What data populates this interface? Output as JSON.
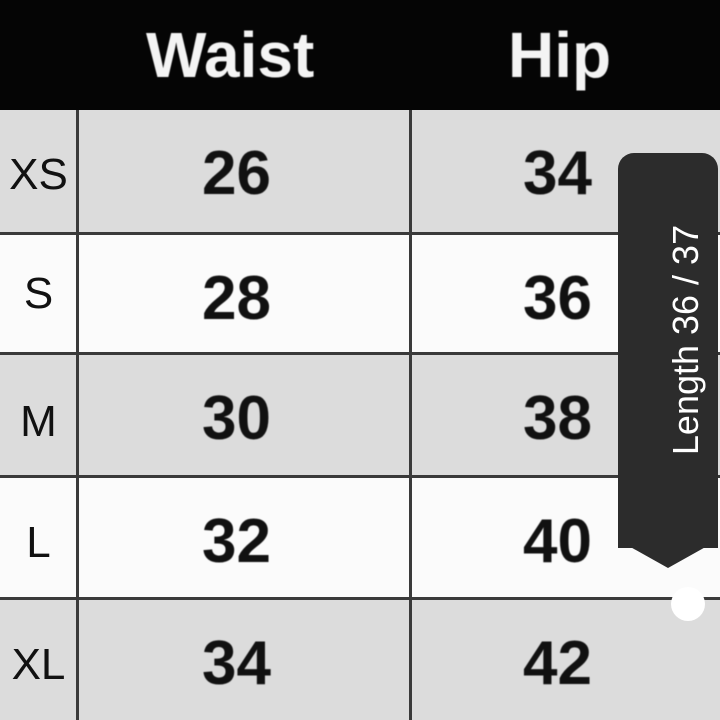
{
  "table": {
    "headers": {
      "waist": "Waist",
      "hip": "Hip"
    },
    "rows": [
      {
        "size": "XS",
        "waist": "26",
        "hip": "34"
      },
      {
        "size": "S",
        "waist": "28",
        "hip": "36"
      },
      {
        "size": "M",
        "waist": "30",
        "hip": "38"
      },
      {
        "size": "L",
        "waist": "32",
        "hip": "40"
      },
      {
        "size": "XL",
        "waist": "34",
        "hip": "42"
      }
    ]
  },
  "scroll_tooltip": {
    "label": "Length 36 / 37"
  },
  "colors": {
    "header_bg": "#050505",
    "row_gray": "#dcdcdc",
    "tooltip_bg": "#2c2c2c"
  }
}
